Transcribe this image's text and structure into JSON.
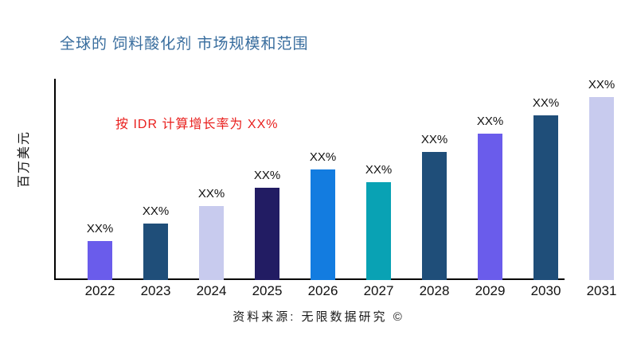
{
  "chart_data": {
    "type": "bar",
    "title": "全球的 饲料酸化剂 市场规模和范围",
    "ylabel": "百万美元",
    "xlabel": "",
    "annotation": "按 IDR 计算增长率为 XX%",
    "source": "资料来源: 无限数据研究 ©",
    "categories": [
      "2022",
      "2023",
      "2024",
      "2025",
      "2026",
      "2027",
      "2028",
      "2029",
      "2030",
      "2031"
    ],
    "values_relative": [
      49,
      71,
      93,
      116,
      139,
      123,
      161,
      184,
      207,
      230
    ],
    "data_labels": [
      "XX%",
      "XX%",
      "XX%",
      "XX%",
      "XX%",
      "XX%",
      "XX%",
      "XX%",
      "XX%",
      "XX%"
    ],
    "bar_colors": [
      "#6a5ceb",
      "#1f4e79",
      "#c8cbee",
      "#221c63",
      "#137ce0",
      "#09a2b4",
      "#1f4e79",
      "#6a5ceb",
      "#1f4e79",
      "#c8cbee"
    ],
    "grid": false,
    "legend": "none",
    "title_color": "#386d9e",
    "annotation_color": "#e9201e"
  }
}
